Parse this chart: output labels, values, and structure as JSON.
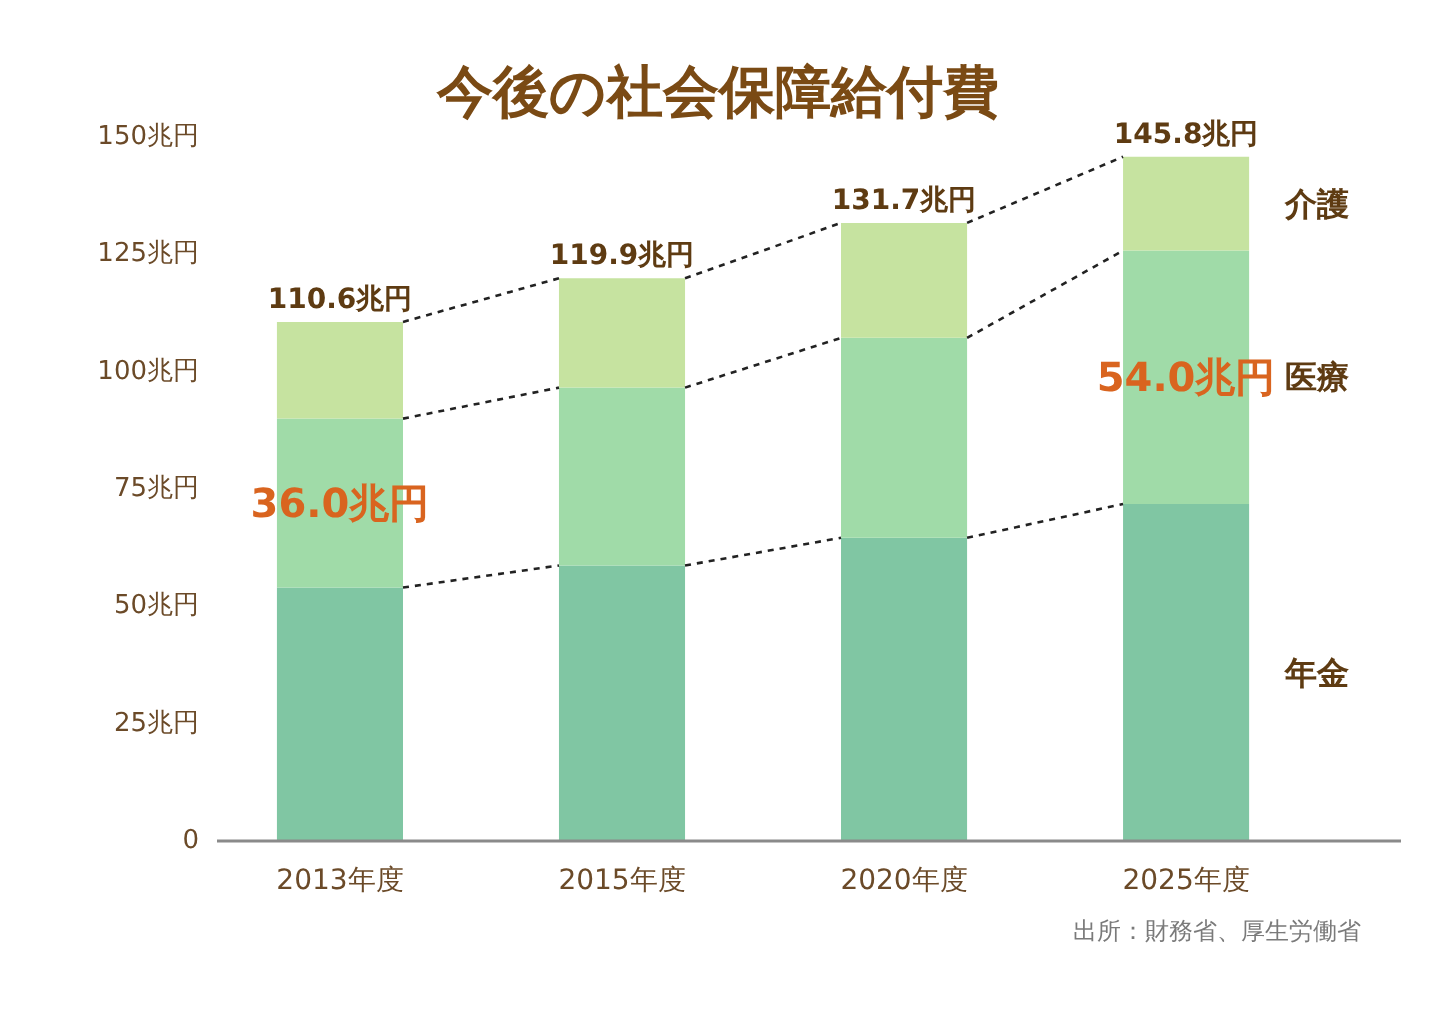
{
  "chart_data": {
    "type": "bar",
    "title": "今後の社会保障給付費",
    "categories": [
      "2013年度",
      "2015年度",
      "2020年度",
      "2025年度"
    ],
    "stacked": true,
    "series": [
      {
        "name": "年金",
        "color": "#80c6a3",
        "values": [
          54.0,
          58.7,
          64.6,
          71.8
        ]
      },
      {
        "name": "医療",
        "color": "#a0dba8",
        "values": [
          36.0,
          37.9,
          42.6,
          54.0
        ],
        "value_labels": [
          "36.0兆円",
          null,
          null,
          "54.0兆円"
        ]
      },
      {
        "name": "介護",
        "color": "#c6e3a0",
        "values": [
          20.6,
          23.3,
          24.5,
          20.0
        ]
      }
    ],
    "totals": [
      "110.6兆円",
      "119.9兆円",
      "131.7兆円",
      "145.8兆円"
    ],
    "ylim": [
      0,
      150
    ],
    "yticks": [
      0,
      {
        "value": 25,
        "label": "25兆円"
      },
      {
        "value": 50,
        "label": "50兆円"
      },
      {
        "value": 75,
        "label": "75兆円"
      },
      {
        "value": 100,
        "label": "100兆円"
      },
      {
        "value": 125,
        "label": "125兆円"
      },
      {
        "value": 150,
        "label": "150兆円"
      }
    ],
    "annotations": [
      "出所：財務省、厚生労働省"
    ]
  }
}
